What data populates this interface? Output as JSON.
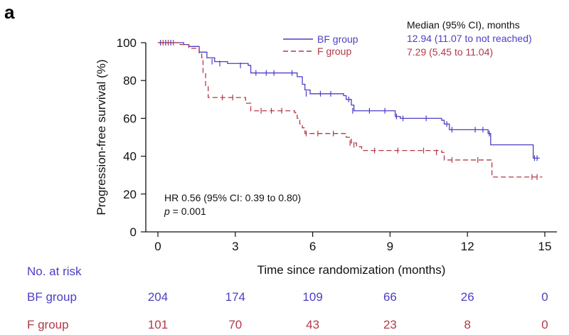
{
  "panel_label": "a",
  "colors": {
    "bf": "#4b3fc4",
    "f": "#b23a48",
    "axis": "#111111"
  },
  "legend": {
    "title": "Median (95% CI), months",
    "bf_name": "BF group",
    "f_name": "F group",
    "bf_median": "12.94 (11.07 to not reached)",
    "f_median": "7.29 (5.45 to 11.04)"
  },
  "annotation": {
    "hr": "HR 0.56 (95% CI: 0.39 to 0.80)",
    "p_symbol": "p",
    "p_value": " = 0.001"
  },
  "risk_table": {
    "title": "No. at risk",
    "rows": [
      {
        "name": "BF group",
        "values": [
          "204",
          "174",
          "109",
          "66",
          "26",
          "0"
        ]
      },
      {
        "name": "F group",
        "values": [
          "101",
          "70",
          "43",
          "23",
          "8",
          "0"
        ]
      }
    ]
  },
  "chart_data": {
    "type": "line",
    "subtype": "kaplan-meier step",
    "xlabel": "Time since randomization (months)",
    "ylabel": "Progression-free survival (%)",
    "xlim": [
      0,
      15
    ],
    "ylim": [
      0,
      100
    ],
    "xticks": [
      0,
      3,
      6,
      9,
      12,
      15
    ],
    "yticks": [
      0,
      20,
      40,
      60,
      80,
      100
    ],
    "series": [
      {
        "name": "BF group",
        "color": "#4b3fc4",
        "dash": false,
        "steps": [
          [
            0,
            100
          ],
          [
            1,
            99
          ],
          [
            1.2,
            98
          ],
          [
            1.6,
            95
          ],
          [
            1.9,
            92
          ],
          [
            2.2,
            90
          ],
          [
            2.7,
            89
          ],
          [
            3.5,
            88
          ],
          [
            3.6,
            84
          ],
          [
            5.3,
            84
          ],
          [
            5.4,
            82
          ],
          [
            5.6,
            78
          ],
          [
            5.7,
            75
          ],
          [
            5.9,
            73
          ],
          [
            7.2,
            72
          ],
          [
            7.3,
            70
          ],
          [
            7.5,
            67
          ],
          [
            7.6,
            64
          ],
          [
            9.1,
            64
          ],
          [
            9.2,
            61
          ],
          [
            9.4,
            60
          ],
          [
            11.0,
            59
          ],
          [
            11.1,
            57
          ],
          [
            11.3,
            54
          ],
          [
            12.7,
            54
          ],
          [
            12.8,
            52
          ],
          [
            12.9,
            46
          ],
          [
            14.5,
            46
          ],
          [
            14.55,
            39
          ],
          [
            14.8,
            39
          ]
        ],
        "censors": [
          [
            0.1,
            100
          ],
          [
            0.3,
            100
          ],
          [
            0.5,
            100
          ],
          [
            2.1,
            90
          ],
          [
            2.4,
            89
          ],
          [
            3.2,
            88
          ],
          [
            3.8,
            84
          ],
          [
            4.2,
            84
          ],
          [
            4.5,
            84
          ],
          [
            5.2,
            84
          ],
          [
            5.75,
            73
          ],
          [
            6.3,
            73
          ],
          [
            6.7,
            73
          ],
          [
            7.4,
            70
          ],
          [
            7.55,
            64
          ],
          [
            8.2,
            64
          ],
          [
            8.8,
            64
          ],
          [
            9.25,
            61
          ],
          [
            9.5,
            60
          ],
          [
            10.4,
            60
          ],
          [
            11.2,
            57
          ],
          [
            11.4,
            54
          ],
          [
            12.3,
            54
          ],
          [
            12.6,
            54
          ],
          [
            12.85,
            52
          ],
          [
            14.6,
            39
          ],
          [
            14.7,
            39
          ]
        ]
      },
      {
        "name": "F group",
        "color": "#b23a48",
        "dash": true,
        "steps": [
          [
            0,
            100
          ],
          [
            0.8,
            99
          ],
          [
            1.2,
            97
          ],
          [
            1.6,
            94
          ],
          [
            1.7,
            92
          ],
          [
            1.75,
            84
          ],
          [
            1.85,
            77
          ],
          [
            1.95,
            71
          ],
          [
            3.3,
            71
          ],
          [
            3.4,
            68
          ],
          [
            3.6,
            64
          ],
          [
            5.3,
            63
          ],
          [
            5.4,
            60
          ],
          [
            5.5,
            57
          ],
          [
            5.6,
            55
          ],
          [
            5.7,
            52
          ],
          [
            7.2,
            52
          ],
          [
            7.3,
            50
          ],
          [
            7.5,
            47
          ],
          [
            7.7,
            45
          ],
          [
            7.9,
            43
          ],
          [
            11.0,
            42
          ],
          [
            11.1,
            38
          ],
          [
            12.9,
            38
          ],
          [
            12.95,
            29
          ],
          [
            14.9,
            29
          ]
        ],
        "censors": [
          [
            0.2,
            100
          ],
          [
            0.4,
            100
          ],
          [
            0.6,
            100
          ],
          [
            2.5,
            71
          ],
          [
            2.9,
            71
          ],
          [
            4.0,
            64
          ],
          [
            4.4,
            64
          ],
          [
            4.8,
            64
          ],
          [
            5.75,
            52
          ],
          [
            6.2,
            52
          ],
          [
            6.8,
            52
          ],
          [
            7.45,
            47
          ],
          [
            7.6,
            46
          ],
          [
            8.4,
            43
          ],
          [
            9.3,
            43
          ],
          [
            10.3,
            43
          ],
          [
            10.8,
            42
          ],
          [
            11.4,
            38
          ],
          [
            12.4,
            38
          ],
          [
            14.5,
            29
          ],
          [
            14.7,
            29
          ]
        ]
      }
    ]
  }
}
